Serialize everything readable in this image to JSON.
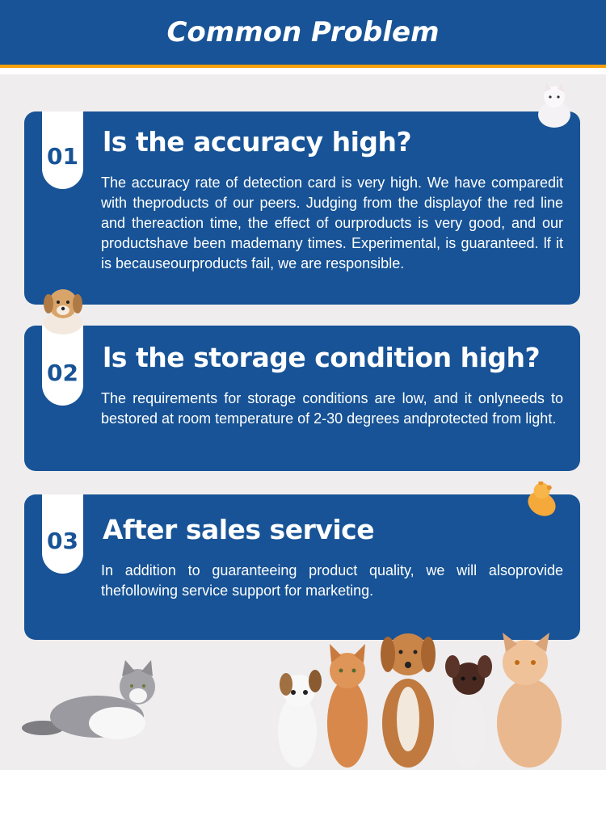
{
  "header": {
    "title": "Common Problem"
  },
  "colors": {
    "brand_blue": "#175396",
    "accent_orange": "#f5a00a",
    "background": "#efedee"
  },
  "cards": [
    {
      "number": "01",
      "title": "ls the accuracy high?",
      "body": "The accuracy rate of detection card is very high. We have comparedit with theproducts of our peers. Judging from the displayof the red line and thereaction time, the effect of ourproducts is very good, and our productshave been mademany times. Experimental, is guaranteed. lf it is becauseourproducts fail, we are responsible."
    },
    {
      "number": "02",
      "title": "ls the storage condition high?",
      "body": "The requirements for storage conditions are low, and it onlyneeds to bestored at room temperature of 2-30 degrees andprotected from light."
    },
    {
      "number": "03",
      "title": "After sales service",
      "body": "In addition to guaranteeing product quality, we will alsoprovide thefollowing service support for marketing."
    }
  ]
}
